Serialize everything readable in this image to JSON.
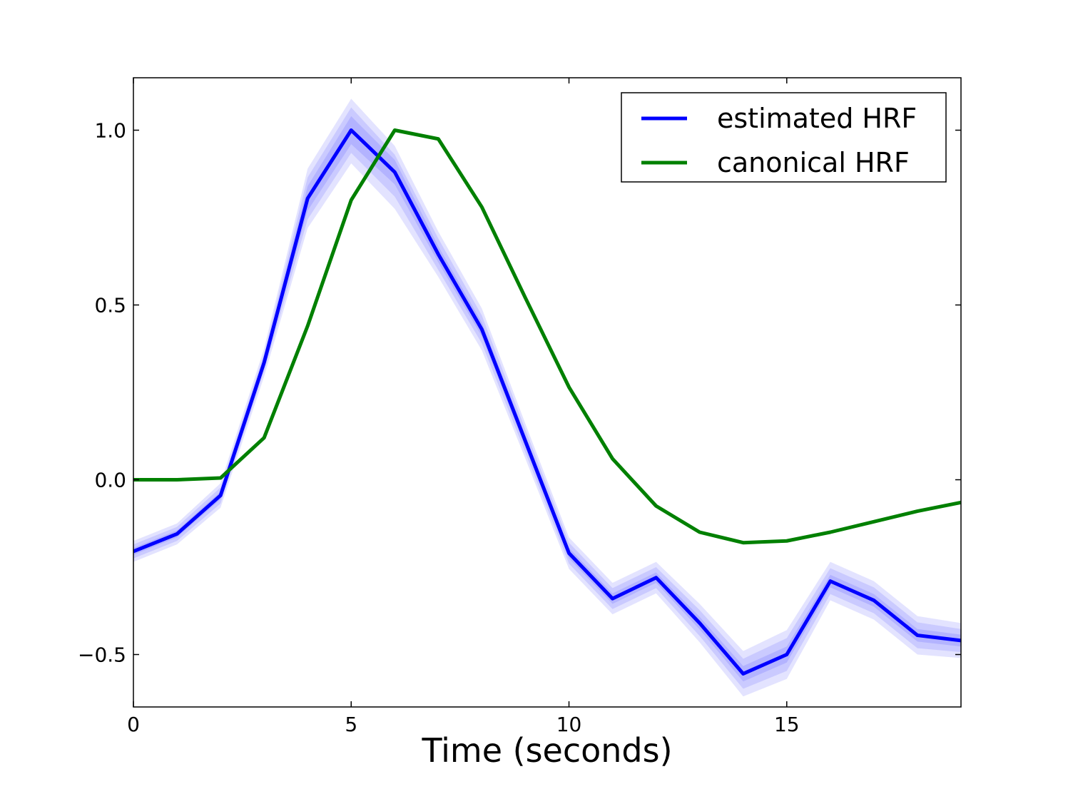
{
  "chart_data": {
    "type": "line",
    "xlabel": "Time (seconds)",
    "ylabel": "",
    "title": "",
    "xlim": [
      0,
      19
    ],
    "ylim": [
      -0.65,
      1.15
    ],
    "x_ticks": [
      0,
      5,
      10,
      15
    ],
    "x_tick_labels": [
      "0",
      "5",
      "10",
      "15"
    ],
    "y_ticks": [
      -0.5,
      0.0,
      0.5,
      1.0
    ],
    "y_tick_labels": [
      "−0.5",
      "0.0",
      "0.5",
      "1.0"
    ],
    "grid": false,
    "legend_position": "top-right",
    "x": [
      0,
      1,
      2,
      3,
      4,
      5,
      6,
      7,
      8,
      9,
      10,
      11,
      12,
      13,
      14,
      15,
      16,
      17,
      18,
      19
    ],
    "series": [
      {
        "name": "estimated HRF",
        "color": "#0000ff",
        "values": [
          -0.205,
          -0.155,
          -0.045,
          0.335,
          0.805,
          1.0,
          0.88,
          0.645,
          0.43,
          0.11,
          -0.21,
          -0.34,
          -0.28,
          -0.41,
          -0.555,
          -0.5,
          -0.29,
          -0.345,
          -0.445,
          -0.46
        ],
        "bands": [
          {
            "lower": [
              -0.235,
              -0.185,
              -0.08,
              0.295,
              0.72,
              0.905,
              0.775,
              0.58,
              0.37,
              0.06,
              -0.255,
              -0.385,
              -0.325,
              -0.465,
              -0.62,
              -0.57,
              -0.345,
              -0.4,
              -0.5,
              -0.51
            ],
            "upper": [
              -0.175,
              -0.125,
              -0.01,
              0.375,
              0.89,
              1.09,
              0.955,
              0.71,
              0.49,
              0.16,
              -0.165,
              -0.295,
              -0.235,
              -0.355,
              -0.49,
              -0.43,
              -0.235,
              -0.29,
              -0.39,
              -0.41
            ]
          },
          {
            "lower": [
              -0.225,
              -0.175,
              -0.068,
              0.31,
              0.745,
              0.935,
              0.81,
              0.6,
              0.39,
              0.077,
              -0.24,
              -0.37,
              -0.31,
              -0.447,
              -0.598,
              -0.547,
              -0.327,
              -0.382,
              -0.482,
              -0.493
            ],
            "upper": [
              -0.185,
              -0.135,
              -0.022,
              0.36,
              0.865,
              1.065,
              0.93,
              0.69,
              0.47,
              0.143,
              -0.18,
              -0.31,
              -0.25,
              -0.373,
              -0.512,
              -0.453,
              -0.253,
              -0.308,
              -0.408,
              -0.427
            ]
          },
          {
            "lower": [
              -0.215,
              -0.165,
              -0.056,
              0.322,
              0.77,
              0.96,
              0.845,
              0.622,
              0.41,
              0.093,
              -0.225,
              -0.355,
              -0.295,
              -0.428,
              -0.577,
              -0.523,
              -0.308,
              -0.363,
              -0.463,
              -0.477
            ],
            "upper": [
              -0.195,
              -0.145,
              -0.034,
              0.348,
              0.84,
              1.04,
              0.915,
              0.668,
              0.45,
              0.127,
              -0.195,
              -0.325,
              -0.265,
              -0.392,
              -0.533,
              -0.477,
              -0.272,
              -0.327,
              -0.427,
              -0.443
            ]
          }
        ]
      },
      {
        "name": "canonical HRF",
        "color": "#008000",
        "values": [
          0.0,
          0.0,
          0.005,
          0.12,
          0.44,
          0.8,
          1.0,
          0.975,
          0.78,
          0.52,
          0.265,
          0.06,
          -0.075,
          -0.15,
          -0.18,
          -0.175,
          -0.15,
          -0.12,
          -0.09,
          -0.065
        ]
      }
    ]
  }
}
